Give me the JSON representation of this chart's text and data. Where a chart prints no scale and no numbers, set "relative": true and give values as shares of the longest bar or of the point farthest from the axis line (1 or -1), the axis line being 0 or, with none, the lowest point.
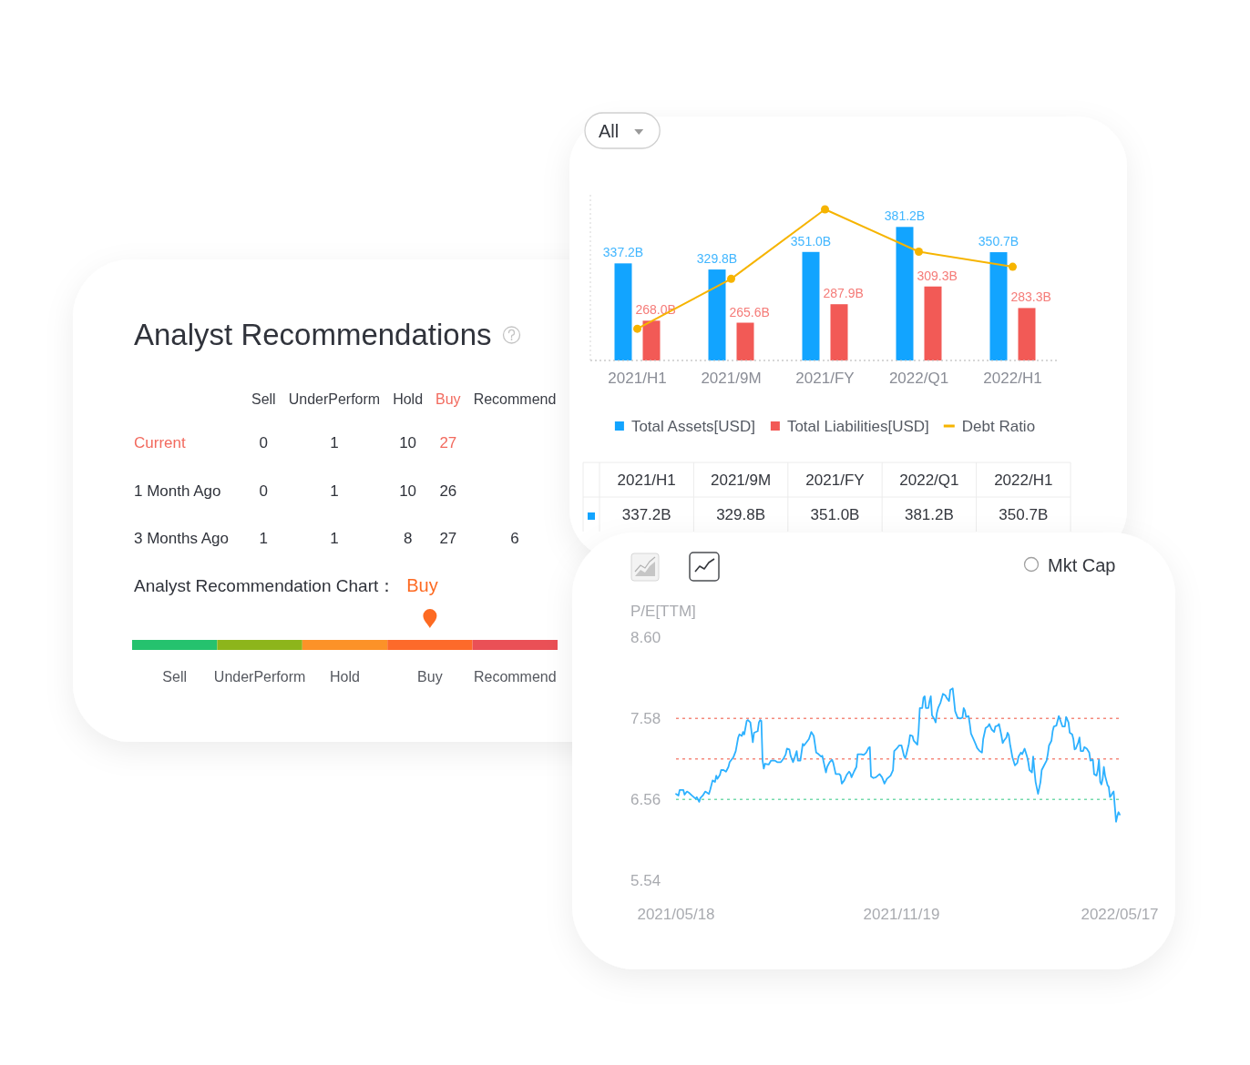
{
  "chart_data": [
    {
      "type": "other",
      "title": "Analyst Recommendations",
      "subtitle": "Analyst Recommendation Chart：",
      "categories": [
        "Sell",
        "UnderPerform",
        "Hold",
        "Buy",
        "Recommend"
      ],
      "series": [
        {
          "name": "Current",
          "values": [
            0,
            1,
            10,
            27,
            null
          ]
        },
        {
          "name": "1 Month Ago",
          "values": [
            0,
            1,
            10,
            26,
            null
          ]
        },
        {
          "name": "3 Months Ago",
          "values": [
            1,
            1,
            8,
            27,
            6
          ]
        }
      ],
      "data_labels": true,
      "colors": [
        "#25c26e",
        "#8db51b",
        "#fc9228",
        "#fd6a2a",
        "#ea5056"
      ],
      "needle": "Buy"
    },
    {
      "type": "bar",
      "categories": [
        "2021/H1",
        "2021/9M",
        "2021/FY",
        "2022/Q1",
        "2022/H1"
      ],
      "series": [
        {
          "name": "Total Assets[USD]",
          "color": "#12a4ff",
          "values": [
            337.2,
            329.8,
            351.0,
            381.2,
            350.7
          ],
          "value_labels": [
            "337.2B",
            "329.8B",
            "351.0B",
            "381.2B",
            "350.7B"
          ]
        },
        {
          "name": "Total Liabilities[USD]",
          "color": "#f25a56",
          "values": [
            268.0,
            265.6,
            287.9,
            309.3,
            283.3
          ],
          "value_labels": [
            "268.0B",
            "265.6B",
            "287.9B",
            "309.3B",
            "283.3B"
          ]
        }
      ],
      "ylim": [
        220,
        420
      ],
      "legend": "bottom",
      "annotations": [
        "All"
      ]
    },
    {
      "type": "line",
      "relative": true,
      "categories": [
        null,
        null,
        null,
        null,
        null
      ],
      "series": [
        {
          "name": "Debt Ratio",
          "color": "#f6b400",
          "values": [
            0.21,
            0.54,
            1,
            0.72,
            0.62
          ]
        }
      ],
      "marker": "circle",
      "legend": "bottom"
    },
    {
      "type": "line",
      "ylabel": "P/E[TTM]",
      "color": "#2db1ff",
      "x": [
        "2021-05-18",
        "2021-05-20",
        "2021-05-21",
        "2021-05-24",
        "2021-05-25",
        "2021-05-27",
        "2021-05-29",
        "2021-05-31",
        "2021-06-03",
        "2021-06-04",
        "2021-06-06",
        "2021-06-07",
        "2021-06-09",
        "2021-06-11",
        "2021-06-14",
        "2021-06-15",
        "2021-06-17",
        "2021-06-19",
        "2021-06-20",
        "2021-06-21",
        "2021-06-23",
        "2021-06-24",
        "2021-06-26",
        "2021-06-28",
        "2021-06-30",
        "2021-07-01",
        "2021-07-04",
        "2021-07-06",
        "2021-07-08",
        "2021-07-09",
        "2021-07-11",
        "2021-07-12",
        "2021-07-13",
        "2021-07-15",
        "2021-07-16",
        "2021-07-18",
        "2021-07-20",
        "2021-07-21",
        "2021-07-24",
        "2021-07-25",
        "2021-07-26",
        "2021-07-27",
        "2021-07-28",
        "2021-07-29",
        "2021-07-30",
        "2021-08-02",
        "2021-08-04",
        "2021-08-07",
        "2021-08-09",
        "2021-08-12",
        "2021-08-14",
        "2021-08-16",
        "2021-08-17",
        "2021-08-19",
        "2021-08-20",
        "2021-08-22",
        "2021-08-23",
        "2021-08-25",
        "2021-08-26",
        "2021-08-28",
        "2021-08-30",
        "2021-08-31",
        "2021-09-02",
        "2021-09-04",
        "2021-09-06",
        "2021-09-08",
        "2021-09-10",
        "2021-09-12",
        "2021-09-14",
        "2021-09-15",
        "2021-09-18",
        "2021-09-19",
        "2021-09-21",
        "2021-09-23",
        "2021-09-24",
        "2021-09-26",
        "2021-09-29",
        "2021-09-30",
        "2021-10-01",
        "2021-10-03",
        "2021-10-05",
        "2021-10-07",
        "2021-10-08",
        "2021-10-09",
        "2021-10-11",
        "2021-10-13",
        "2021-10-14",
        "2021-10-17",
        "2021-10-19",
        "2021-10-21",
        "2021-10-23",
        "2021-10-24",
        "2021-10-25",
        "2021-10-27",
        "2021-10-29",
        "2021-11-01",
        "2021-11-03",
        "2021-11-05",
        "2021-11-07",
        "2021-11-10",
        "2021-11-12",
        "2021-11-13",
        "2021-11-15",
        "2021-11-17",
        "2021-11-19",
        "2021-11-21",
        "2021-11-22",
        "2021-11-23",
        "2021-11-25",
        "2021-11-26",
        "2021-11-28",
        "2021-11-29",
        "2021-12-02",
        "2021-12-03",
        "2021-12-04",
        "2021-12-06",
        "2021-12-07",
        "2021-12-08",
        "2021-12-09",
        "2021-12-11",
        "2021-12-12",
        "2021-12-13",
        "2021-12-14",
        "2021-12-16",
        "2021-12-17",
        "2021-12-18",
        "2021-12-19",
        "2021-12-21",
        "2021-12-23",
        "2021-12-25",
        "2021-12-26",
        "2021-12-28",
        "2021-12-29",
        "2021-12-31",
        "2022-01-01",
        "2022-01-02",
        "2022-01-04",
        "2022-01-06",
        "2022-01-08",
        "2022-01-09",
        "2022-01-10",
        "2022-01-11",
        "2022-01-13",
        "2022-01-14",
        "2022-01-15",
        "2022-01-17",
        "2022-01-19",
        "2022-01-20",
        "2022-01-22",
        "2022-01-24",
        "2022-01-25",
        "2022-01-27",
        "2022-01-29",
        "2022-01-30",
        "2022-02-01",
        "2022-02-03",
        "2022-02-04",
        "2022-02-06",
        "2022-02-07",
        "2022-02-09",
        "2022-02-10",
        "2022-02-11",
        "2022-02-13",
        "2022-02-14",
        "2022-02-15",
        "2022-02-16",
        "2022-02-18",
        "2022-02-20",
        "2022-02-22",
        "2022-02-23",
        "2022-02-25",
        "2022-02-26",
        "2022-02-28",
        "2022-03-02",
        "2022-03-03",
        "2022-03-04",
        "2022-03-06",
        "2022-03-07",
        "2022-03-08",
        "2022-03-09",
        "2022-03-11",
        "2022-03-13",
        "2022-03-14",
        "2022-03-16",
        "2022-03-18",
        "2022-03-19",
        "2022-03-20",
        "2022-03-22",
        "2022-03-23",
        "2022-03-24",
        "2022-03-26",
        "2022-03-28",
        "2022-03-29",
        "2022-03-31",
        "2022-04-02",
        "2022-04-03",
        "2022-04-05",
        "2022-04-06",
        "2022-04-08",
        "2022-04-09",
        "2022-04-10",
        "2022-04-11",
        "2022-04-13",
        "2022-04-14",
        "2022-04-15",
        "2022-04-17",
        "2022-04-18",
        "2022-04-20",
        "2022-04-22",
        "2022-04-23",
        "2022-04-25",
        "2022-04-26",
        "2022-04-28",
        "2022-04-29",
        "2022-04-30",
        "2022-05-01",
        "2022-05-02",
        "2022-05-03",
        "2022-05-04",
        "2022-05-05",
        "2022-05-07",
        "2022-05-08",
        "2022-05-09",
        "2022-05-10",
        "2022-05-11",
        "2022-05-12",
        "2022-05-13",
        "2022-05-14",
        "2022-05-15",
        "2022-05-16",
        "2022-05-17"
      ],
      "values": [
        6.63,
        6.61,
        6.68,
        6.68,
        6.62,
        6.66,
        6.64,
        6.61,
        6.57,
        6.59,
        6.53,
        6.58,
        6.61,
        6.66,
        6.63,
        6.68,
        6.8,
        6.78,
        6.86,
        6.82,
        6.87,
        6.93,
        6.93,
        6.91,
        6.97,
        7.03,
        7.09,
        7.17,
        7.34,
        7.38,
        7.36,
        7.41,
        7.38,
        7.55,
        7.56,
        7.53,
        7.28,
        7.4,
        7.42,
        7.53,
        7.56,
        7.55,
        7.05,
        6.95,
        7.01,
        7.0,
        7.05,
        7.05,
        7.03,
        7.03,
        7.07,
        7.13,
        7.2,
        7.19,
        7.11,
        7.03,
        7.07,
        7.17,
        7.05,
        7.05,
        7.26,
        7.24,
        7.28,
        7.32,
        7.41,
        7.36,
        7.15,
        7.13,
        7.1,
        7.11,
        6.9,
        6.97,
        7.03,
        7.06,
        7.02,
        6.88,
        6.88,
        6.86,
        6.76,
        6.8,
        6.87,
        6.91,
        6.89,
        6.84,
        6.91,
        6.97,
        7.13,
        7.13,
        7.12,
        7.15,
        7.21,
        7.22,
        6.85,
        6.83,
        6.84,
        6.88,
        6.84,
        6.76,
        6.82,
        6.86,
        6.93,
        7.17,
        7.2,
        7.24,
        7.24,
        7.11,
        7.08,
        7.13,
        7.26,
        7.37,
        7.36,
        7.3,
        7.25,
        7.42,
        7.71,
        7.71,
        7.84,
        7.86,
        7.71,
        7.71,
        7.8,
        7.86,
        7.62,
        7.57,
        7.53,
        7.65,
        7.71,
        7.78,
        7.89,
        7.87,
        7.84,
        7.8,
        7.94,
        7.96,
        7.82,
        7.67,
        7.59,
        7.58,
        7.59,
        7.71,
        7.68,
        7.6,
        7.61,
        7.51,
        7.39,
        7.32,
        7.25,
        7.21,
        7.17,
        7.15,
        7.32,
        7.46,
        7.48,
        7.51,
        7.44,
        7.41,
        7.48,
        7.49,
        7.51,
        7.36,
        7.27,
        7.3,
        7.34,
        7.4,
        7.37,
        7.26,
        7.09,
        6.99,
        7.02,
        7.1,
        7.15,
        7.13,
        7.2,
        7.1,
        7.03,
        6.93,
        6.9,
        7.1,
        6.93,
        6.78,
        6.63,
        6.78,
        6.93,
        6.99,
        7.05,
        7.13,
        7.24,
        7.3,
        7.42,
        7.48,
        7.49,
        7.61,
        7.57,
        7.48,
        7.48,
        7.6,
        7.53,
        7.4,
        7.38,
        7.32,
        7.19,
        7.2,
        7.28,
        7.34,
        7.17,
        7.17,
        7.22,
        7.2,
        7.15,
        7.05,
        7.06,
        6.88,
        6.86,
        6.93,
        7.06,
        6.78,
        6.75,
        6.82,
        6.97,
        6.86,
        6.74,
        6.72,
        6.59,
        6.61,
        6.64,
        6.66,
        6.47,
        6.28,
        6.35,
        6.4,
        6.37
      ],
      "xlim": [
        "2021-05-18",
        "2022-05-17"
      ],
      "xticks": [
        {
          "value": "2021-05-18",
          "label": "2021/05/18"
        },
        {
          "value": "2021-11-19",
          "label": "2021/11/19"
        },
        {
          "value": "2022-05-17",
          "label": "2022/05/17"
        }
      ],
      "ylim": [
        5.54,
        8.6
      ],
      "yticks": [
        {
          "value": 8.6,
          "label": "8.60"
        },
        7.58,
        6.56,
        5.54
      ],
      "ref_lines": [
        {
          "axis": "y",
          "value": 7.58,
          "color": "#f5897c",
          "line_style": "dashed"
        },
        {
          "axis": "y",
          "value": 7.07,
          "color": "#f5897c",
          "line_style": "dashed"
        },
        {
          "axis": "y",
          "value": 6.56,
          "color": "#74d9ac",
          "line_style": "dashed"
        }
      ],
      "annotations": [
        "Mkt Cap"
      ]
    }
  ]
}
